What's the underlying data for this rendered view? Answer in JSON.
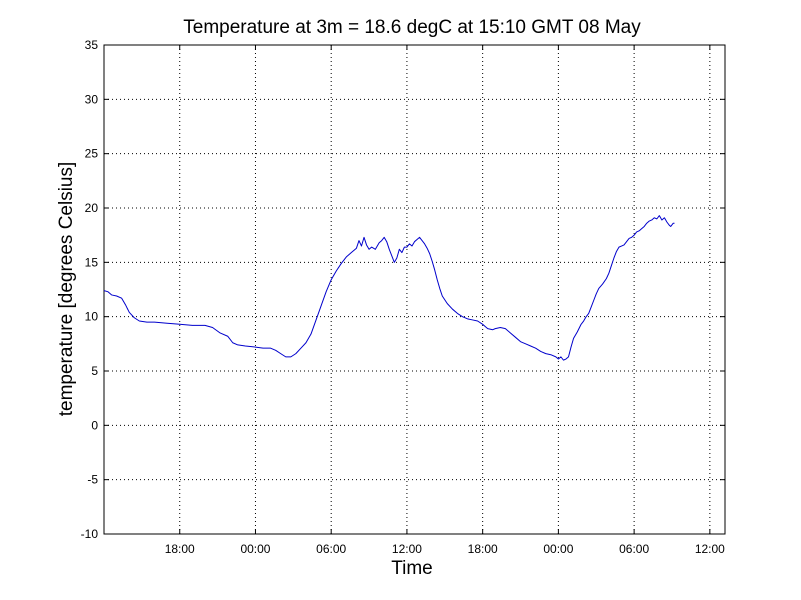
{
  "chart_data": {
    "type": "line",
    "title": "Temperature at 3m = 18.6 degC at 15:10 GMT 08 May",
    "xlabel": "Time",
    "ylabel": "temperature [degrees Celsius]",
    "x_unit": "hour",
    "xlim": [
      15.0,
      39.6
    ],
    "ylim": [
      -10,
      35
    ],
    "y_ticks": [
      -10,
      -5,
      0,
      5,
      10,
      15,
      20,
      25,
      30,
      35
    ],
    "x_ticks": [
      {
        "x": 18,
        "label": "18:00"
      },
      {
        "x": 21,
        "label": "00:00"
      },
      {
        "x": 24,
        "label": "06:00"
      },
      {
        "x": 27,
        "label": "12:00"
      },
      {
        "x": 30,
        "label": "18:00"
      },
      {
        "x": 33,
        "label": "00:00"
      },
      {
        "x": 36,
        "label": "06:00"
      },
      {
        "x": 39,
        "label": "12:00"
      }
    ],
    "grid": true,
    "colors": {
      "series": "#0000cc",
      "axes": "#000000"
    },
    "series": [
      {
        "values": [
          [
            15.0,
            12.4
          ],
          [
            15.15,
            12.3
          ],
          [
            15.3,
            12.0
          ],
          [
            15.5,
            11.9
          ],
          [
            15.7,
            11.7
          ],
          [
            15.85,
            11.1
          ],
          [
            16.0,
            10.4
          ],
          [
            16.2,
            9.9
          ],
          [
            16.4,
            9.6
          ],
          [
            16.7,
            9.5
          ],
          [
            17.0,
            9.5
          ],
          [
            17.5,
            9.4
          ],
          [
            18.0,
            9.3
          ],
          [
            18.5,
            9.2
          ],
          [
            19.0,
            9.2
          ],
          [
            19.3,
            9.0
          ],
          [
            19.6,
            8.5
          ],
          [
            19.9,
            8.2
          ],
          [
            20.1,
            7.6
          ],
          [
            20.3,
            7.4
          ],
          [
            20.6,
            7.3
          ],
          [
            21.0,
            7.2
          ],
          [
            21.3,
            7.1
          ],
          [
            21.6,
            7.1
          ],
          [
            21.8,
            6.9
          ],
          [
            22.0,
            6.6
          ],
          [
            22.2,
            6.3
          ],
          [
            22.4,
            6.3
          ],
          [
            22.6,
            6.6
          ],
          [
            22.8,
            7.1
          ],
          [
            23.0,
            7.6
          ],
          [
            23.2,
            8.4
          ],
          [
            23.4,
            9.7
          ],
          [
            23.6,
            11.0
          ],
          [
            23.8,
            12.3
          ],
          [
            24.0,
            13.4
          ],
          [
            24.2,
            14.2
          ],
          [
            24.4,
            14.9
          ],
          [
            24.6,
            15.5
          ],
          [
            24.8,
            15.9
          ],
          [
            25.0,
            16.3
          ],
          [
            25.1,
            17.0
          ],
          [
            25.2,
            16.5
          ],
          [
            25.3,
            17.3
          ],
          [
            25.4,
            16.6
          ],
          [
            25.5,
            16.2
          ],
          [
            25.6,
            16.4
          ],
          [
            25.75,
            16.2
          ],
          [
            25.9,
            16.8
          ],
          [
            26.0,
            17.0
          ],
          [
            26.1,
            17.3
          ],
          [
            26.2,
            16.9
          ],
          [
            26.3,
            16.2
          ],
          [
            26.4,
            15.6
          ],
          [
            26.5,
            15.0
          ],
          [
            26.6,
            15.4
          ],
          [
            26.7,
            16.2
          ],
          [
            26.8,
            15.9
          ],
          [
            26.9,
            16.4
          ],
          [
            27.0,
            16.4
          ],
          [
            27.1,
            16.7
          ],
          [
            27.2,
            16.5
          ],
          [
            27.3,
            16.9
          ],
          [
            27.4,
            17.1
          ],
          [
            27.5,
            17.3
          ],
          [
            27.6,
            17.0
          ],
          [
            27.7,
            16.7
          ],
          [
            27.8,
            16.3
          ],
          [
            27.9,
            15.8
          ],
          [
            28.0,
            15.1
          ],
          [
            28.1,
            14.3
          ],
          [
            28.2,
            13.4
          ],
          [
            28.3,
            12.6
          ],
          [
            28.4,
            11.9
          ],
          [
            28.6,
            11.2
          ],
          [
            28.8,
            10.7
          ],
          [
            29.0,
            10.3
          ],
          [
            29.2,
            10.0
          ],
          [
            29.4,
            9.8
          ],
          [
            29.6,
            9.7
          ],
          [
            29.8,
            9.6
          ],
          [
            30.0,
            9.3
          ],
          [
            30.1,
            9.1
          ],
          [
            30.2,
            8.9
          ],
          [
            30.4,
            8.8
          ],
          [
            30.5,
            8.9
          ],
          [
            30.7,
            9.0
          ],
          [
            30.9,
            8.9
          ],
          [
            31.1,
            8.5
          ],
          [
            31.3,
            8.1
          ],
          [
            31.5,
            7.7
          ],
          [
            31.7,
            7.5
          ],
          [
            31.9,
            7.3
          ],
          [
            32.1,
            7.1
          ],
          [
            32.3,
            6.8
          ],
          [
            32.5,
            6.6
          ],
          [
            32.7,
            6.5
          ],
          [
            32.9,
            6.3
          ],
          [
            33.0,
            6.1
          ],
          [
            33.1,
            6.3
          ],
          [
            33.2,
            6.0
          ],
          [
            33.3,
            6.1
          ],
          [
            33.4,
            6.3
          ],
          [
            33.5,
            7.2
          ],
          [
            33.6,
            8.0
          ],
          [
            33.75,
            8.6
          ],
          [
            33.9,
            9.3
          ],
          [
            34.0,
            9.6
          ],
          [
            34.1,
            10.0
          ],
          [
            34.2,
            10.3
          ],
          [
            34.3,
            10.9
          ],
          [
            34.4,
            11.5
          ],
          [
            34.5,
            12.1
          ],
          [
            34.6,
            12.6
          ],
          [
            34.75,
            13.0
          ],
          [
            34.9,
            13.5
          ],
          [
            35.0,
            14.0
          ],
          [
            35.1,
            14.7
          ],
          [
            35.2,
            15.4
          ],
          [
            35.3,
            16.0
          ],
          [
            35.4,
            16.4
          ],
          [
            35.5,
            16.5
          ],
          [
            35.6,
            16.6
          ],
          [
            35.7,
            16.9
          ],
          [
            35.8,
            17.2
          ],
          [
            35.9,
            17.3
          ],
          [
            36.0,
            17.5
          ],
          [
            36.1,
            17.8
          ],
          [
            36.2,
            17.9
          ],
          [
            36.3,
            18.1
          ],
          [
            36.4,
            18.3
          ],
          [
            36.5,
            18.6
          ],
          [
            36.6,
            18.8
          ],
          [
            36.7,
            18.9
          ],
          [
            36.8,
            19.1
          ],
          [
            36.9,
            19.0
          ],
          [
            37.0,
            19.3
          ],
          [
            37.1,
            18.9
          ],
          [
            37.2,
            19.1
          ],
          [
            37.3,
            18.7
          ],
          [
            37.4,
            18.4
          ],
          [
            37.45,
            18.3
          ],
          [
            37.55,
            18.6
          ],
          [
            37.6,
            18.6
          ]
        ]
      }
    ]
  }
}
